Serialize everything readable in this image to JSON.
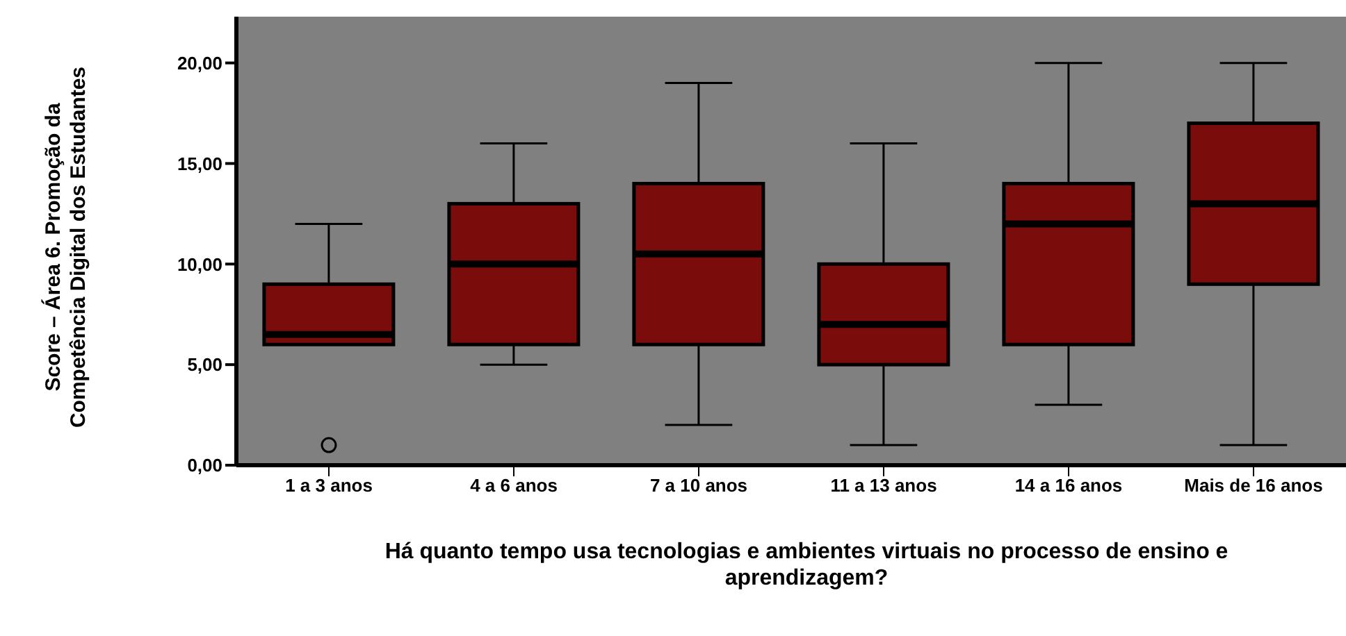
{
  "chart_data": {
    "type": "box",
    "xlabel": "Há quanto tempo usa tecnologias e ambientes virtuais no processo de ensino e aprendizagem?",
    "ylabel": "Score – Área 6. Promoção da Competência Digital dos Estudantes",
    "categories": [
      "1 a 3 anos",
      "4 a 6 anos",
      "7 a 10 anos",
      "11 a 13 anos",
      "14 a 16 anos",
      "Mais de 16 anos"
    ],
    "series": [
      {
        "color": "#7b0c0c",
        "boxes": [
          {
            "low": 6,
            "q1": 6,
            "median": 6.5,
            "q3": 9,
            "high": 12,
            "outliers": [
              1
            ]
          },
          {
            "low": 5,
            "q1": 6,
            "median": 10,
            "q3": 13,
            "high": 16
          },
          {
            "low": 2,
            "q1": 6,
            "median": 10.5,
            "q3": 14,
            "high": 19
          },
          {
            "low": 1,
            "q1": 5,
            "median": 7,
            "q3": 10,
            "high": 16
          },
          {
            "low": 3,
            "q1": 6,
            "median": 12,
            "q3": 14,
            "high": 20
          },
          {
            "low": 1,
            "q1": 9,
            "median": 13,
            "q3": 17,
            "high": 20
          }
        ]
      }
    ],
    "ylim": [
      0,
      22.3
    ],
    "yticks": [
      {
        "value": 0,
        "label": "0,00"
      },
      {
        "value": 5,
        "label": "5,00"
      },
      {
        "value": 10,
        "label": "10,00"
      },
      {
        "value": 15,
        "label": "15,00"
      },
      {
        "value": 20,
        "label": "20,00"
      }
    ],
    "grid": false
  }
}
